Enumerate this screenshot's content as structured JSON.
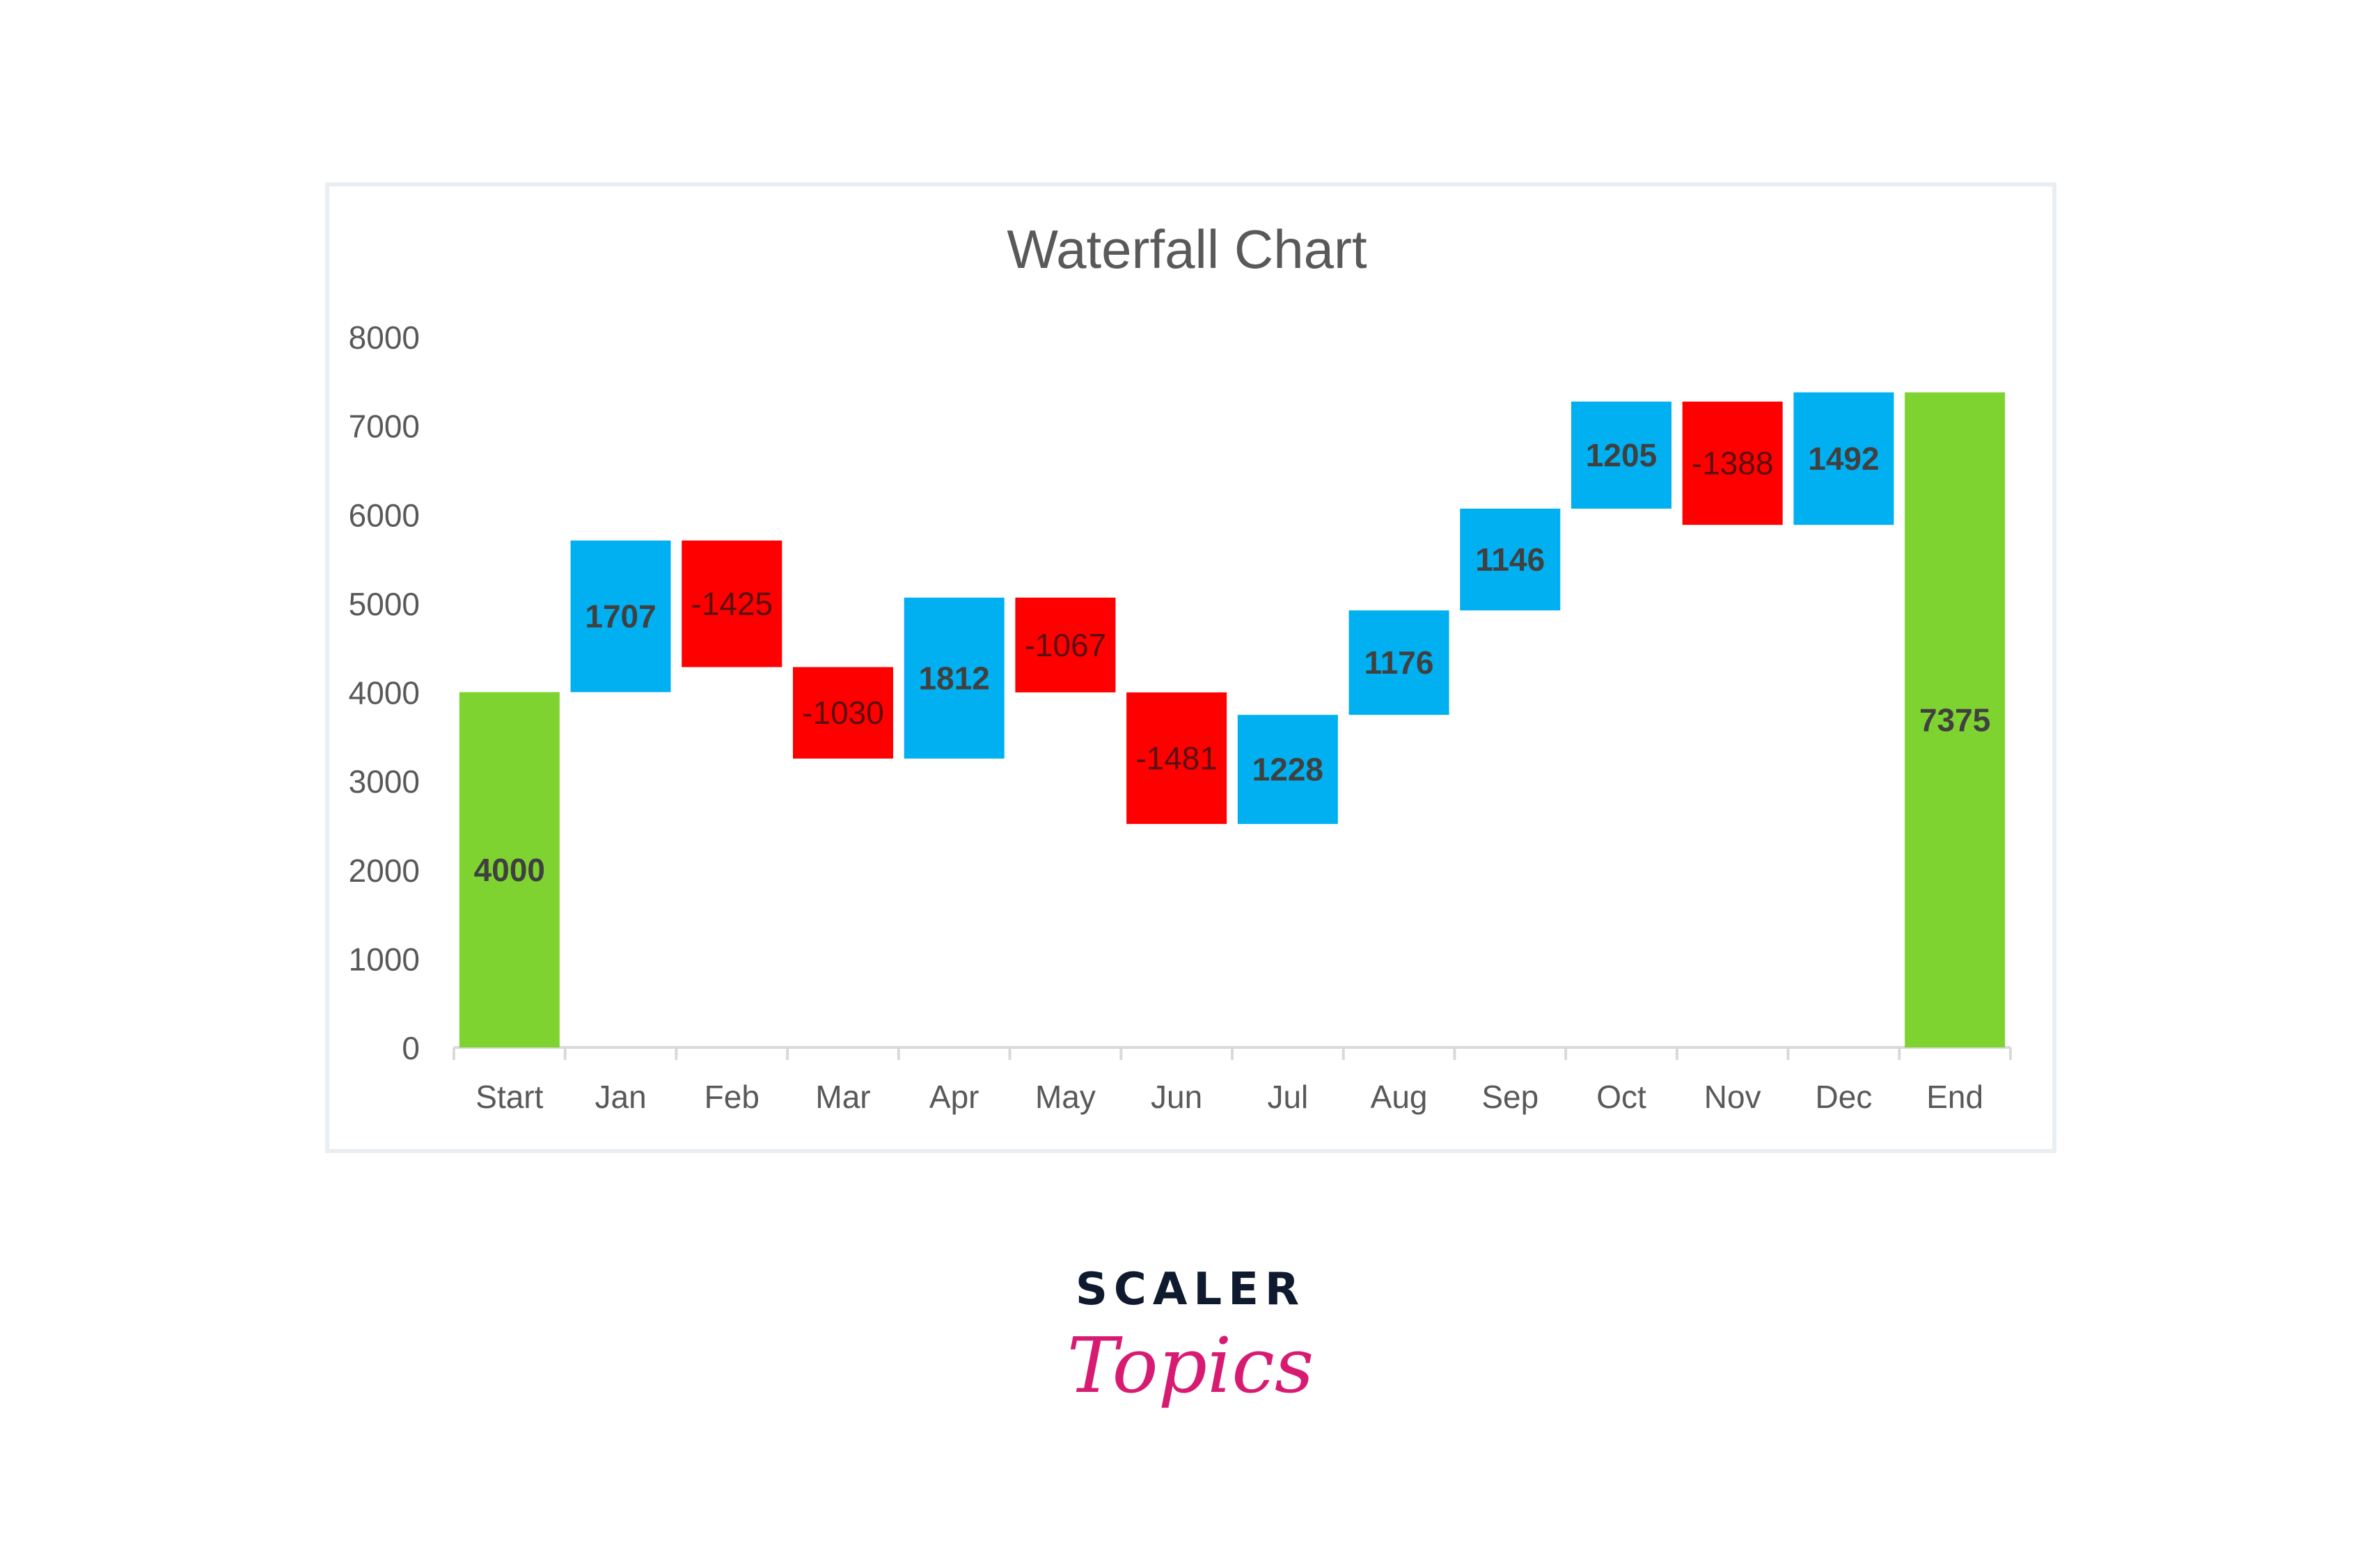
{
  "chart_data": {
    "type": "waterfall",
    "title": "Waterfall Chart",
    "xlabel": "",
    "ylabel": "",
    "ylim": [
      0,
      8000
    ],
    "yticks": [
      "0",
      "1000",
      "2000",
      "3000",
      "4000",
      "5000",
      "6000",
      "7000",
      "8000"
    ],
    "ytick_values": [
      0,
      1000,
      2000,
      3000,
      4000,
      5000,
      6000,
      7000,
      8000
    ],
    "categories": [
      "Start",
      "Jan",
      "Feb",
      "Mar",
      "Apr",
      "May",
      "Jun",
      "Jul",
      "Aug",
      "Sep",
      "Oct",
      "Nov",
      "Dec",
      "End"
    ],
    "values": [
      4000,
      1707,
      -1425,
      -1030,
      1812,
      -1067,
      -1481,
      1228,
      1176,
      1146,
      1205,
      -1388,
      1492,
      7375
    ],
    "kinds": [
      "total",
      "delta",
      "delta",
      "delta",
      "delta",
      "delta",
      "delta",
      "delta",
      "delta",
      "delta",
      "delta",
      "delta",
      "delta",
      "total"
    ],
    "labels": [
      "4000",
      "1707",
      "-1425",
      "-1030",
      "1812",
      "-1067",
      "-1481",
      "1228",
      "1176",
      "1146",
      "1205",
      "-1388",
      "1492",
      "7375"
    ],
    "grid": false,
    "legend": "none",
    "colors": {
      "total": "#7ED331",
      "increase": "#00B0F0",
      "decrease": "#FF0000",
      "text": "#595959",
      "label": "#404040"
    }
  },
  "logo": {
    "top": "SCALER",
    "bottom": "Topics"
  }
}
